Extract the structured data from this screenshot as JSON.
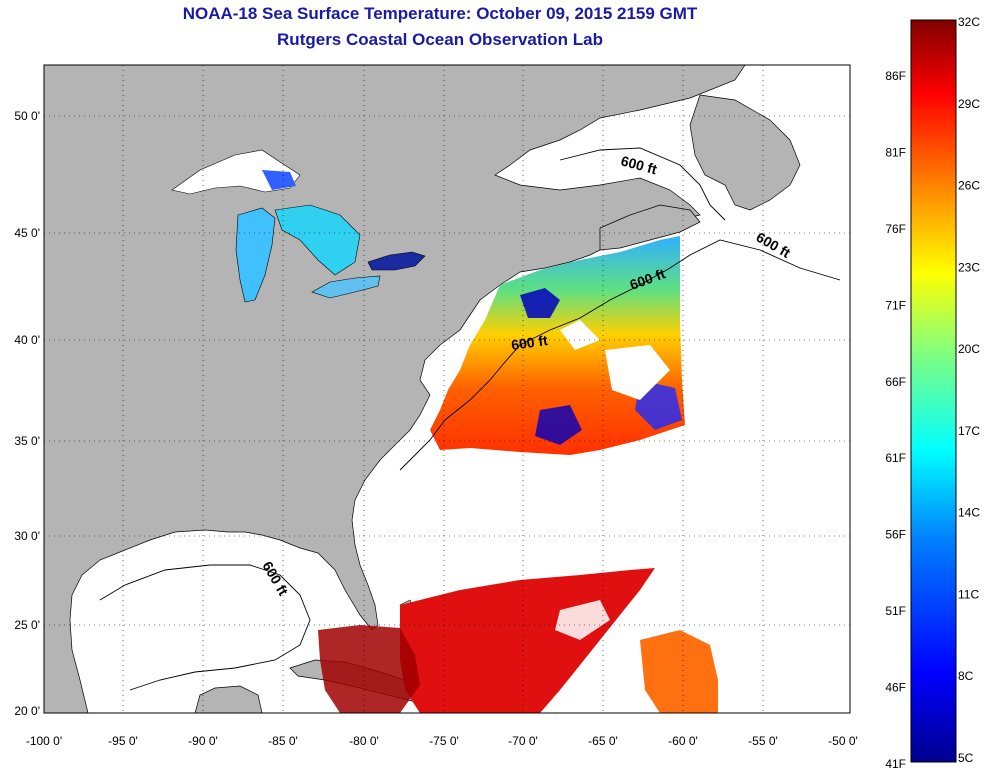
{
  "header": {
    "title": "NOAA-18 Sea Surface Temperature:  October 09, 2015 2159 GMT",
    "subtitle": "Rutgers Coastal Ocean Observation Lab"
  },
  "map": {
    "x_ticks": [
      "-100 0'",
      "-95 0'",
      "-90 0'",
      "-85 0'",
      "-80 0'",
      "-75 0'",
      "-70 0'",
      "-65 0'",
      "-60 0'",
      "-55 0'",
      "-50 0'"
    ],
    "y_ticks": [
      "50 0'",
      "45 0'",
      "40 0'",
      "35 0'",
      "30 0'",
      "25 0'",
      "20 0'"
    ],
    "contour_label": "600 ft",
    "land_color": "#b4b4b4",
    "water_nodata_color": "#ffffff"
  },
  "colorbar": {
    "celsius_labels": [
      "32C",
      "29C",
      "26C",
      "23C",
      "20C",
      "17C",
      "14C",
      "11C",
      "8C",
      "5C"
    ],
    "fahrenheit_labels": [
      "86F",
      "81F",
      "76F",
      "71F",
      "66F",
      "61F",
      "56F",
      "51F",
      "46F",
      "41F"
    ],
    "colormap": [
      "#00008f",
      "#0000ff",
      "#0080ff",
      "#00ffff",
      "#80ff80",
      "#ffff00",
      "#ff8000",
      "#ff0000",
      "#800000"
    ]
  }
}
